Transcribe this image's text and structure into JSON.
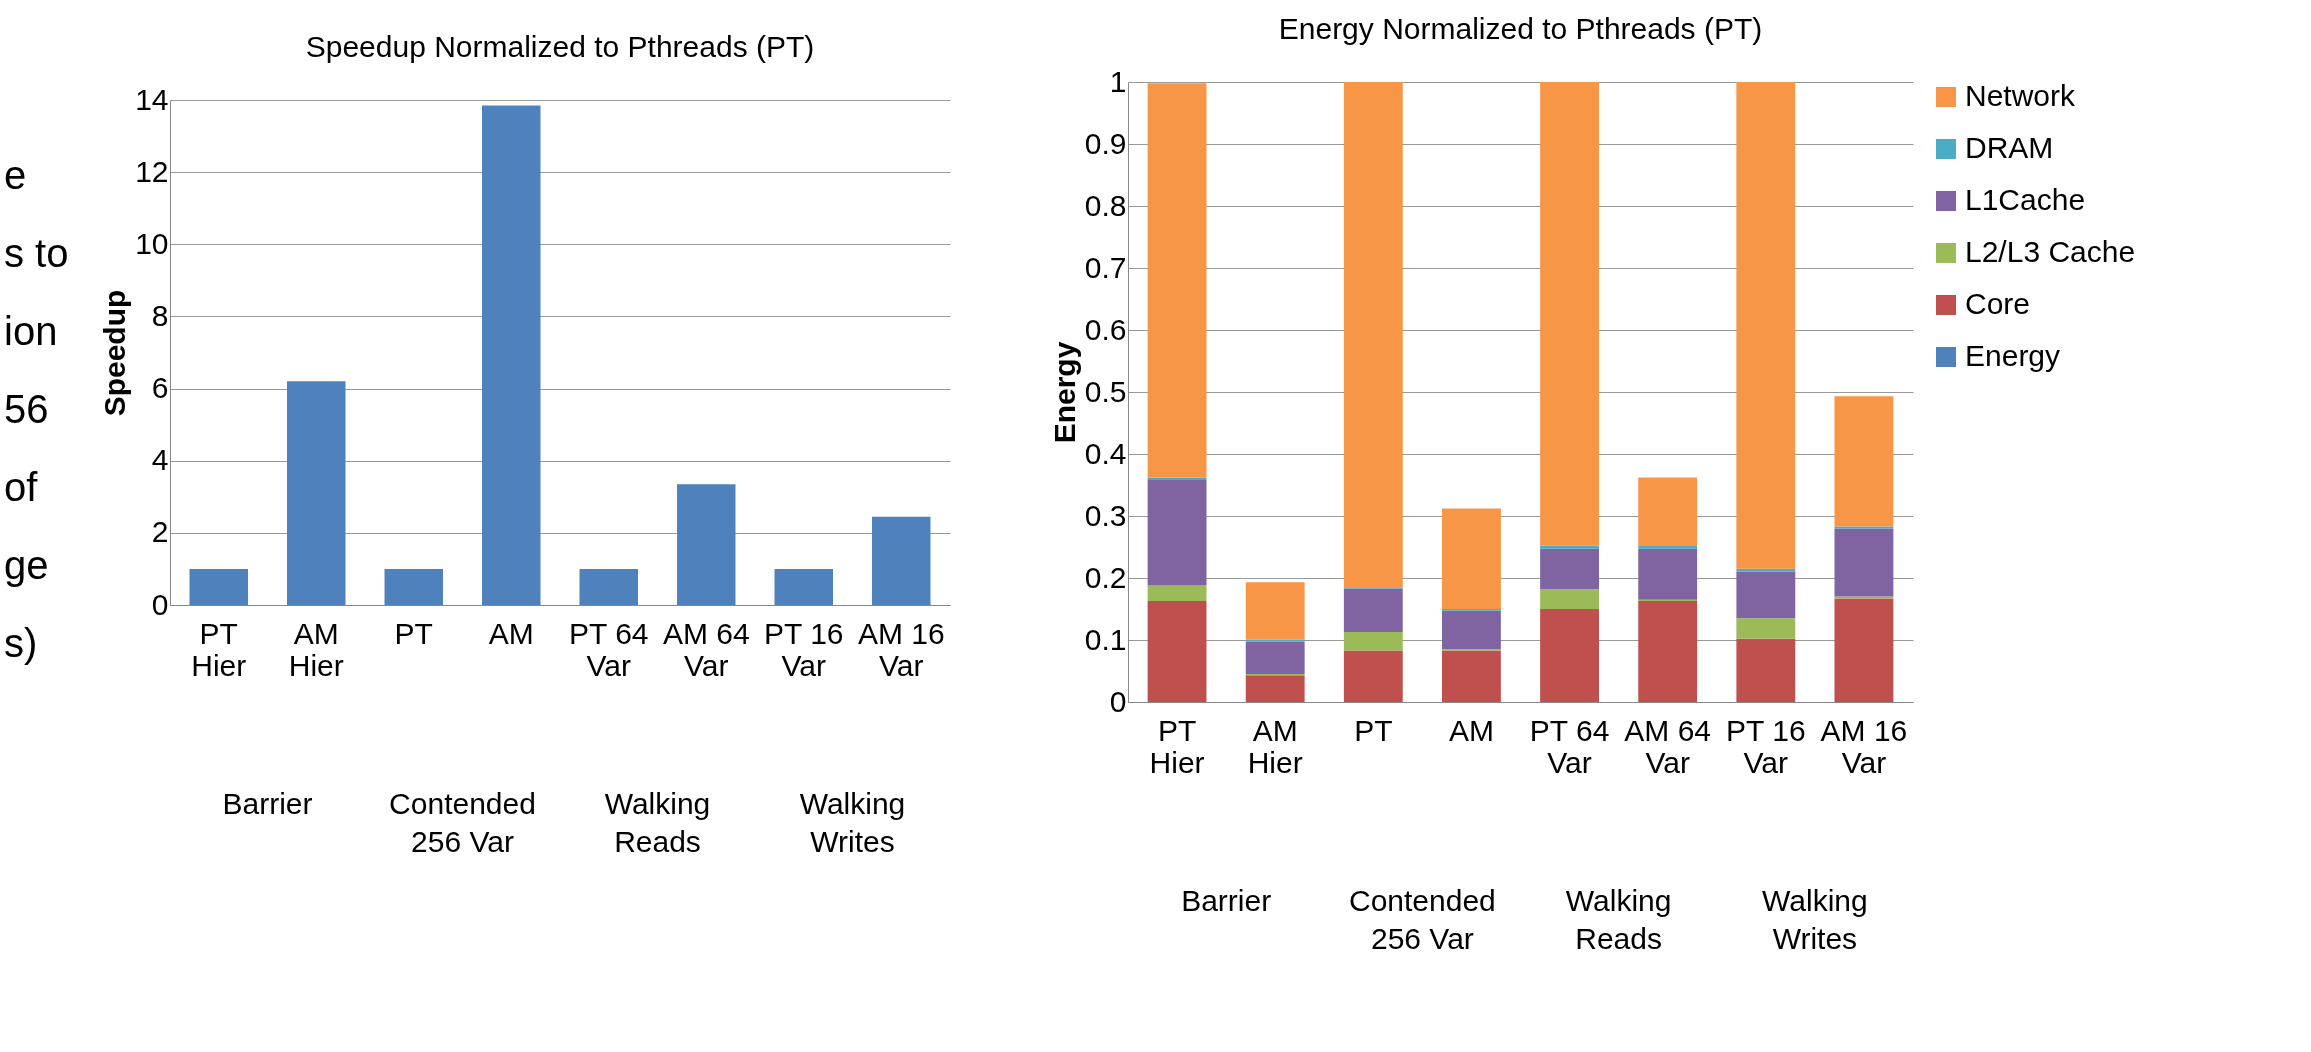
{
  "chart_data": [
    {
      "type": "other",
      "annotations": [
        "e",
        "s to",
        "ion",
        "56",
        "of",
        "ge",
        "s)"
      ]
    },
    {
      "type": "bar",
      "title": "Speedup Normalized to Pthreads (PT)",
      "ylabel": "Speedup",
      "categories": [
        "PT Hier",
        "AM Hier",
        "PT",
        "AM",
        "PT 64 Var",
        "AM 64 Var",
        "PT 16 Var",
        "AM 16 Var"
      ],
      "values": [
        1,
        6.2,
        1,
        13.85,
        1,
        3.35,
        1,
        2.45
      ],
      "color": "#4f81bd",
      "ylim": [
        0,
        14
      ],
      "yticks": [
        0,
        2,
        4,
        6,
        8,
        10,
        12,
        14
      ],
      "grid": "y",
      "annotations": [
        "Barrier",
        "Contended 256 Var",
        "Walking Reads",
        "Walking Writes"
      ]
    },
    {
      "type": "bar",
      "title": "Energy Normalized to Pthreads (PT)",
      "ylabel": "Energy",
      "stacked": true,
      "categories": [
        "PT Hier",
        "AM Hier",
        "PT",
        "AM",
        "PT 64 Var",
        "AM 64 Var",
        "PT 16 Var",
        "AM 16 Var"
      ],
      "series": [
        {
          "name": "Energy",
          "color": "#4f81bd",
          "values": [
            0,
            0,
            0,
            0,
            0,
            0,
            0,
            0
          ]
        },
        {
          "name": "Core",
          "color": "#c0504d",
          "values": [
            0.163,
            0.043,
            0.083,
            0.083,
            0.15,
            0.163,
            0.102,
            0.167
          ]
        },
        {
          "name": "L2/L3 Cache",
          "color": "#9bbb59",
          "values": [
            0.025,
            0.002,
            0.03,
            0.002,
            0.032,
            0.002,
            0.033,
            0.003
          ]
        },
        {
          "name": "L1Cache",
          "color": "#8064a2",
          "values": [
            0.17,
            0.052,
            0.07,
            0.062,
            0.065,
            0.082,
            0.075,
            0.11
          ]
        },
        {
          "name": "DRAM",
          "color": "#4bacc6",
          "values": [
            0.004,
            0.004,
            0.002,
            0.003,
            0.005,
            0.006,
            0.005,
            0.003
          ]
        },
        {
          "name": "Network",
          "color": "#f79646",
          "values": [
            0.636,
            0.092,
            0.815,
            0.162,
            0.748,
            0.109,
            0.785,
            0.21
          ]
        }
      ],
      "ylim": [
        0,
        1
      ],
      "yticks": [
        0,
        0.1,
        0.2,
        0.3,
        0.4,
        0.5,
        0.6,
        0.7,
        0.8,
        0.9,
        1
      ],
      "grid": "y",
      "legend": "right",
      "annotations": [
        "Barrier",
        "Contended 256 Var",
        "Walking Reads",
        "Walking Writes"
      ]
    }
  ]
}
